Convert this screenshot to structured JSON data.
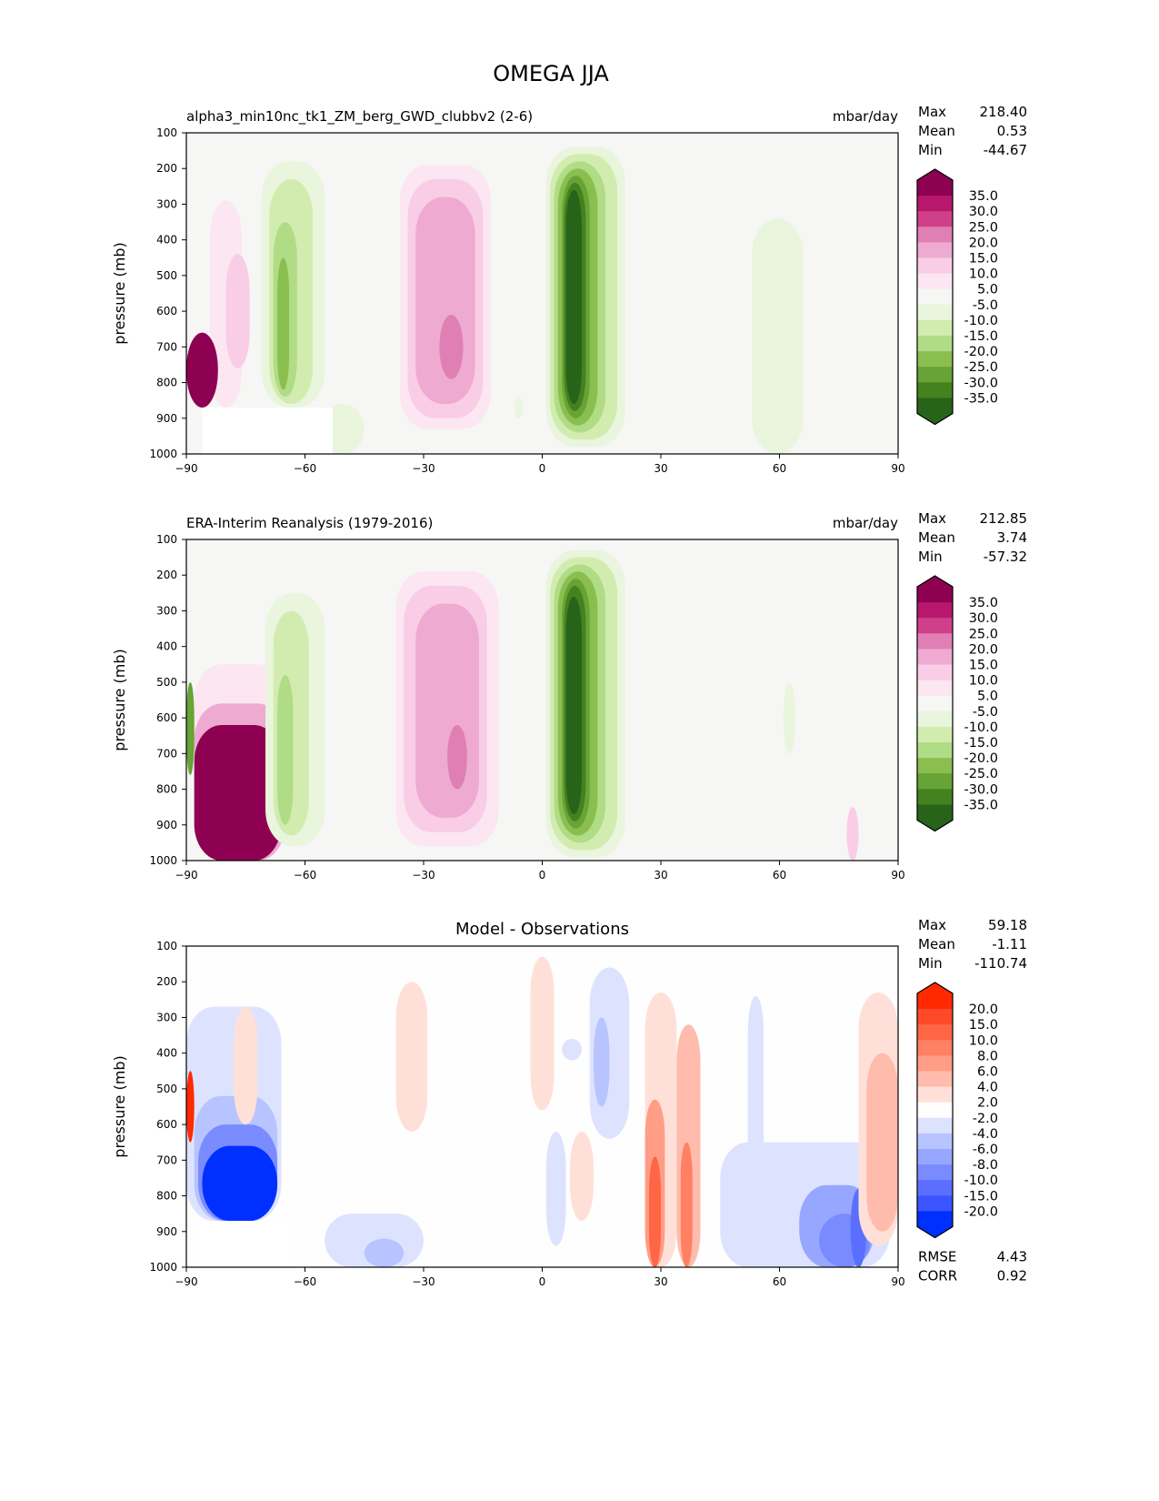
{
  "chart_data": {
    "type": "heatmap",
    "title": "OMEGA JJA",
    "panels": [
      {
        "name": "model",
        "subtitle": "alpha3_min10nc_tk1_ZM_berg_GWD_clubbv2 (2-6)",
        "units": "mbar/day",
        "center_title": "",
        "stats": [
          {
            "label": "Max",
            "value": "218.40"
          },
          {
            "label": "Mean",
            "value": "0.53"
          },
          {
            "label": "Min",
            "value": "-44.67"
          }
        ],
        "extra_stats": [],
        "colormap": "field",
        "features": [
          {
            "lat": [
              -86,
              -69
            ],
            "p": [
              210,
              870
            ],
            "level": 5
          },
          {
            "lat": [
              -84,
              -76
            ],
            "p": [
              290,
              870
            ],
            "level": 10
          },
          {
            "lat": [
              -80,
              -74
            ],
            "p": [
              440,
              760
            ],
            "level": 15
          },
          {
            "lat": [
              -90,
              -82
            ],
            "p": [
              660,
              870
            ],
            "level": 40
          },
          {
            "lat": [
              -71,
              -55
            ],
            "p": [
              180,
              870
            ],
            "level": -5
          },
          {
            "lat": [
              -69,
              -58
            ],
            "p": [
              230,
              860
            ],
            "level": -10
          },
          {
            "lat": [
              -68,
              -62
            ],
            "p": [
              350,
              840
            ],
            "level": -15
          },
          {
            "lat": [
              -67,
              -64
            ],
            "p": [
              450,
              820
            ],
            "level": -20
          },
          {
            "lat": [
              -56,
              -45
            ],
            "p": [
              860,
              1000
            ],
            "level": -5
          },
          {
            "lat": [
              -38,
              -10
            ],
            "p": [
              160,
              960
            ],
            "level": 5
          },
          {
            "lat": [
              -36,
              -13
            ],
            "p": [
              190,
              930
            ],
            "level": 10
          },
          {
            "lat": [
              -34,
              -15
            ],
            "p": [
              230,
              900
            ],
            "level": 15
          },
          {
            "lat": [
              -32,
              -17
            ],
            "p": [
              280,
              860
            ],
            "level": 20
          },
          {
            "lat": [
              -26,
              -20
            ],
            "p": [
              610,
              790
            ],
            "level": 25
          },
          {
            "lat": [
              -7,
              -5
            ],
            "p": [
              840,
              900
            ],
            "level": -5
          },
          {
            "lat": [
              1,
              21
            ],
            "p": [
              140,
              980
            ],
            "level": -5
          },
          {
            "lat": [
              2,
              19
            ],
            "p": [
              160,
              960
            ],
            "level": -10
          },
          {
            "lat": [
              3,
              16
            ],
            "p": [
              180,
              940
            ],
            "level": -15
          },
          {
            "lat": [
              4,
              14
            ],
            "p": [
              200,
              920
            ],
            "level": -20
          },
          {
            "lat": [
              5,
              12
            ],
            "p": [
              220,
              900
            ],
            "level": -25
          },
          {
            "lat": [
              5.5,
              11
            ],
            "p": [
              240,
              880
            ],
            "level": -30
          },
          {
            "lat": [
              6,
              10
            ],
            "p": [
              260,
              860
            ],
            "level": -35
          },
          {
            "lat": [
              26,
              37
            ],
            "p": [
              220,
              900
            ],
            "level": 5
          },
          {
            "lat": [
              53,
              66
            ],
            "p": [
              340,
              1000
            ],
            "level": -5
          },
          {
            "lat": [
              73,
              75
            ],
            "p": [
              500,
              650
            ],
            "level": 5
          }
        ],
        "mask": {
          "lat": [
            -86,
            -53
          ],
          "p": [
            870,
            1000
          ]
        }
      },
      {
        "name": "observations",
        "subtitle": "ERA-Interim Reanalysis (1979-2016)",
        "units": "mbar/day",
        "center_title": "",
        "stats": [
          {
            "label": "Max",
            "value": "212.85"
          },
          {
            "label": "Mean",
            "value": "3.74"
          },
          {
            "label": "Min",
            "value": "-57.32"
          }
        ],
        "extra_stats": [],
        "colormap": "field",
        "features": [
          {
            "lat": [
              -89,
              -64
            ],
            "p": [
              290,
              1000
            ],
            "level": 5
          },
          {
            "lat": [
              -88,
              -65
            ],
            "p": [
              450,
              1000
            ],
            "level": 10
          },
          {
            "lat": [
              -88,
              -65
            ],
            "p": [
              560,
              1000
            ],
            "level": 20
          },
          {
            "lat": [
              -88,
              -66
            ],
            "p": [
              620,
              1000
            ],
            "level": 40
          },
          {
            "lat": [
              -90,
              -88
            ],
            "p": [
              500,
              760
            ],
            "level": -25
          },
          {
            "lat": [
              -70,
              -55
            ],
            "p": [
              250,
              960
            ],
            "level": -5
          },
          {
            "lat": [
              -68,
              -59
            ],
            "p": [
              300,
              930
            ],
            "level": -10
          },
          {
            "lat": [
              -67,
              -63
            ],
            "p": [
              480,
              900
            ],
            "level": -15
          },
          {
            "lat": [
              -40,
              -8
            ],
            "p": [
              160,
              990
            ],
            "level": 5
          },
          {
            "lat": [
              -37,
              -11
            ],
            "p": [
              190,
              960
            ],
            "level": 10
          },
          {
            "lat": [
              -35,
              -14
            ],
            "p": [
              230,
              920
            ],
            "level": 15
          },
          {
            "lat": [
              -32,
              -16
            ],
            "p": [
              280,
              880
            ],
            "level": 20
          },
          {
            "lat": [
              -24,
              -19
            ],
            "p": [
              620,
              800
            ],
            "level": 25
          },
          {
            "lat": [
              1,
              21
            ],
            "p": [
              130,
              990
            ],
            "level": -5
          },
          {
            "lat": [
              2,
              19
            ],
            "p": [
              150,
              970
            ],
            "level": -10
          },
          {
            "lat": [
              3,
              16
            ],
            "p": [
              170,
              950
            ],
            "level": -15
          },
          {
            "lat": [
              4,
              14
            ],
            "p": [
              190,
              930
            ],
            "level": -20
          },
          {
            "lat": [
              5,
              12
            ],
            "p": [
              210,
              910
            ],
            "level": -25
          },
          {
            "lat": [
              5.5,
              11
            ],
            "p": [
              230,
              890
            ],
            "level": -30
          },
          {
            "lat": [
              6,
              10
            ],
            "p": [
              260,
              870
            ],
            "level": -35
          },
          {
            "lat": [
              31,
              46
            ],
            "p": [
              520,
              1000
            ],
            "level": 5
          },
          {
            "lat": [
              61,
              64
            ],
            "p": [
              500,
              700
            ],
            "level": -5
          },
          {
            "lat": [
              68,
              83
            ],
            "p": [
              780,
              1000
            ],
            "level": 5
          },
          {
            "lat": [
              77,
              80
            ],
            "p": [
              850,
              1000
            ],
            "level": 15
          }
        ],
        "mask": null
      },
      {
        "name": "difference",
        "subtitle": "",
        "units": "",
        "center_title": "Model - Observations",
        "stats": [
          {
            "label": "Max",
            "value": "59.18"
          },
          {
            "label": "Mean",
            "value": "-1.11"
          },
          {
            "label": "Min",
            "value": "-110.74"
          }
        ],
        "extra_stats": [
          {
            "label": "RMSE",
            "value": "4.43"
          },
          {
            "label": "CORR",
            "value": "0.92"
          }
        ],
        "colormap": "diff",
        "features": [
          {
            "lat": [
              -90,
              -66
            ],
            "p": [
              270,
              870
            ],
            "level": -3
          },
          {
            "lat": [
              -88,
              -67
            ],
            "p": [
              520,
              870
            ],
            "level": -5
          },
          {
            "lat": [
              -87,
              -67
            ],
            "p": [
              600,
              870
            ],
            "level": -9
          },
          {
            "lat": [
              -86,
              -67
            ],
            "p": [
              660,
              870
            ],
            "level": -25
          },
          {
            "lat": [
              -90,
              -88
            ],
            "p": [
              450,
              650
            ],
            "level": 25
          },
          {
            "lat": [
              -78,
              -72
            ],
            "p": [
              270,
              600
            ],
            "level": 3
          },
          {
            "lat": [
              -55,
              -30
            ],
            "p": [
              850,
              1000
            ],
            "level": -3
          },
          {
            "lat": [
              -45,
              -35
            ],
            "p": [
              920,
              1000
            ],
            "level": -5
          },
          {
            "lat": [
              -37,
              -29
            ],
            "p": [
              200,
              620
            ],
            "level": 3
          },
          {
            "lat": [
              -3,
              3
            ],
            "p": [
              130,
              560
            ],
            "level": 3
          },
          {
            "lat": [
              5,
              10
            ],
            "p": [
              360,
              420
            ],
            "level": -3
          },
          {
            "lat": [
              12,
              22
            ],
            "p": [
              160,
              640
            ],
            "level": -3
          },
          {
            "lat": [
              13,
              17
            ],
            "p": [
              300,
              550
            ],
            "level": -5
          },
          {
            "lat": [
              7,
              13
            ],
            "p": [
              620,
              870
            ],
            "level": 3
          },
          {
            "lat": [
              1,
              6
            ],
            "p": [
              620,
              940
            ],
            "level": -3
          },
          {
            "lat": [
              26,
              34
            ],
            "p": [
              230,
              1000
            ],
            "level": 3
          },
          {
            "lat": [
              26,
              31
            ],
            "p": [
              530,
              1000
            ],
            "level": 7
          },
          {
            "lat": [
              27,
              30
            ],
            "p": [
              690,
              1000
            ],
            "level": 12
          },
          {
            "lat": [
              34,
              40
            ],
            "p": [
              320,
              1000
            ],
            "level": 5
          },
          {
            "lat": [
              35,
              38
            ],
            "p": [
              650,
              1000
            ],
            "level": 9
          },
          {
            "lat": [
              45,
              88
            ],
            "p": [
              650,
              1000
            ],
            "level": -3
          },
          {
            "lat": [
              52,
              56
            ],
            "p": [
              240,
              1000
            ],
            "level": -3
          },
          {
            "lat": [
              65,
              84
            ],
            "p": [
              770,
              1000
            ],
            "level": -6
          },
          {
            "lat": [
              70,
              83
            ],
            "p": [
              850,
              1000
            ],
            "level": -9
          },
          {
            "lat": [
              78,
              82
            ],
            "p": [
              780,
              1000
            ],
            "level": -12
          },
          {
            "lat": [
              80,
              90
            ],
            "p": [
              230,
              940
            ],
            "level": 3
          },
          {
            "lat": [
              82,
              90
            ],
            "p": [
              400,
              900
            ],
            "level": 5
          }
        ],
        "mask": {
          "lat": [
            -88,
            -64
          ],
          "p": [
            870,
            1000
          ]
        }
      }
    ],
    "xlim": [
      -90,
      90
    ],
    "ylim": [
      1000,
      100
    ],
    "xticks": [
      "−90",
      "−60",
      "−30",
      "0",
      "30",
      "60",
      "90"
    ],
    "xtick_values": [
      -90,
      -60,
      -30,
      0,
      30,
      60,
      90
    ],
    "yticks": [
      "100",
      "200",
      "300",
      "400",
      "500",
      "600",
      "700",
      "800",
      "900",
      "1000"
    ],
    "ytick_values": [
      100,
      200,
      300,
      400,
      500,
      600,
      700,
      800,
      900,
      1000
    ],
    "ylabel": "pressure (mb)",
    "colorbars": {
      "field": {
        "levels": [
          "35.0",
          "30.0",
          "25.0",
          "20.0",
          "15.0",
          "10.0",
          "5.0",
          "-5.0",
          "-10.0",
          "-15.0",
          "-20.0",
          "-25.0",
          "-30.0",
          "-35.0"
        ],
        "level_values": [
          35,
          30,
          25,
          20,
          15,
          10,
          5,
          -5,
          -10,
          -15,
          -20,
          -25,
          -30,
          -35
        ],
        "colors": [
          "#8e0152",
          "#b8176e",
          "#d0408a",
          "#e07fb4",
          "#eeaad0",
          "#f8cde5",
          "#fbe6f1",
          "#f6f6f5",
          "#e9f5dc",
          "#d2ecb0",
          "#b0dc86",
          "#8abf4f",
          "#67a336",
          "#44821f",
          "#27641a"
        ],
        "background": "#f6f6f5"
      },
      "diff": {
        "levels": [
          "20.0",
          "15.0",
          "10.0",
          "8.0",
          "6.0",
          "4.0",
          "2.0",
          "-2.0",
          "-4.0",
          "-6.0",
          "-8.0",
          "-10.0",
          "-15.0",
          "-20.0"
        ],
        "level_values": [
          20,
          15,
          10,
          8,
          6,
          4,
          2,
          -2,
          -4,
          -6,
          -8,
          -10,
          -15,
          -20
        ],
        "colors": [
          "#ff2a00",
          "#ff4a2a",
          "#ff6645",
          "#ff8062",
          "#ff9d87",
          "#ffbcad",
          "#ffe0d8",
          "#fefefe",
          "#dde3ff",
          "#b8c4ff",
          "#97a7ff",
          "#7a8bff",
          "#5a6fff",
          "#3a55ff",
          "#0030ff"
        ],
        "background": "#fefefe"
      }
    }
  }
}
